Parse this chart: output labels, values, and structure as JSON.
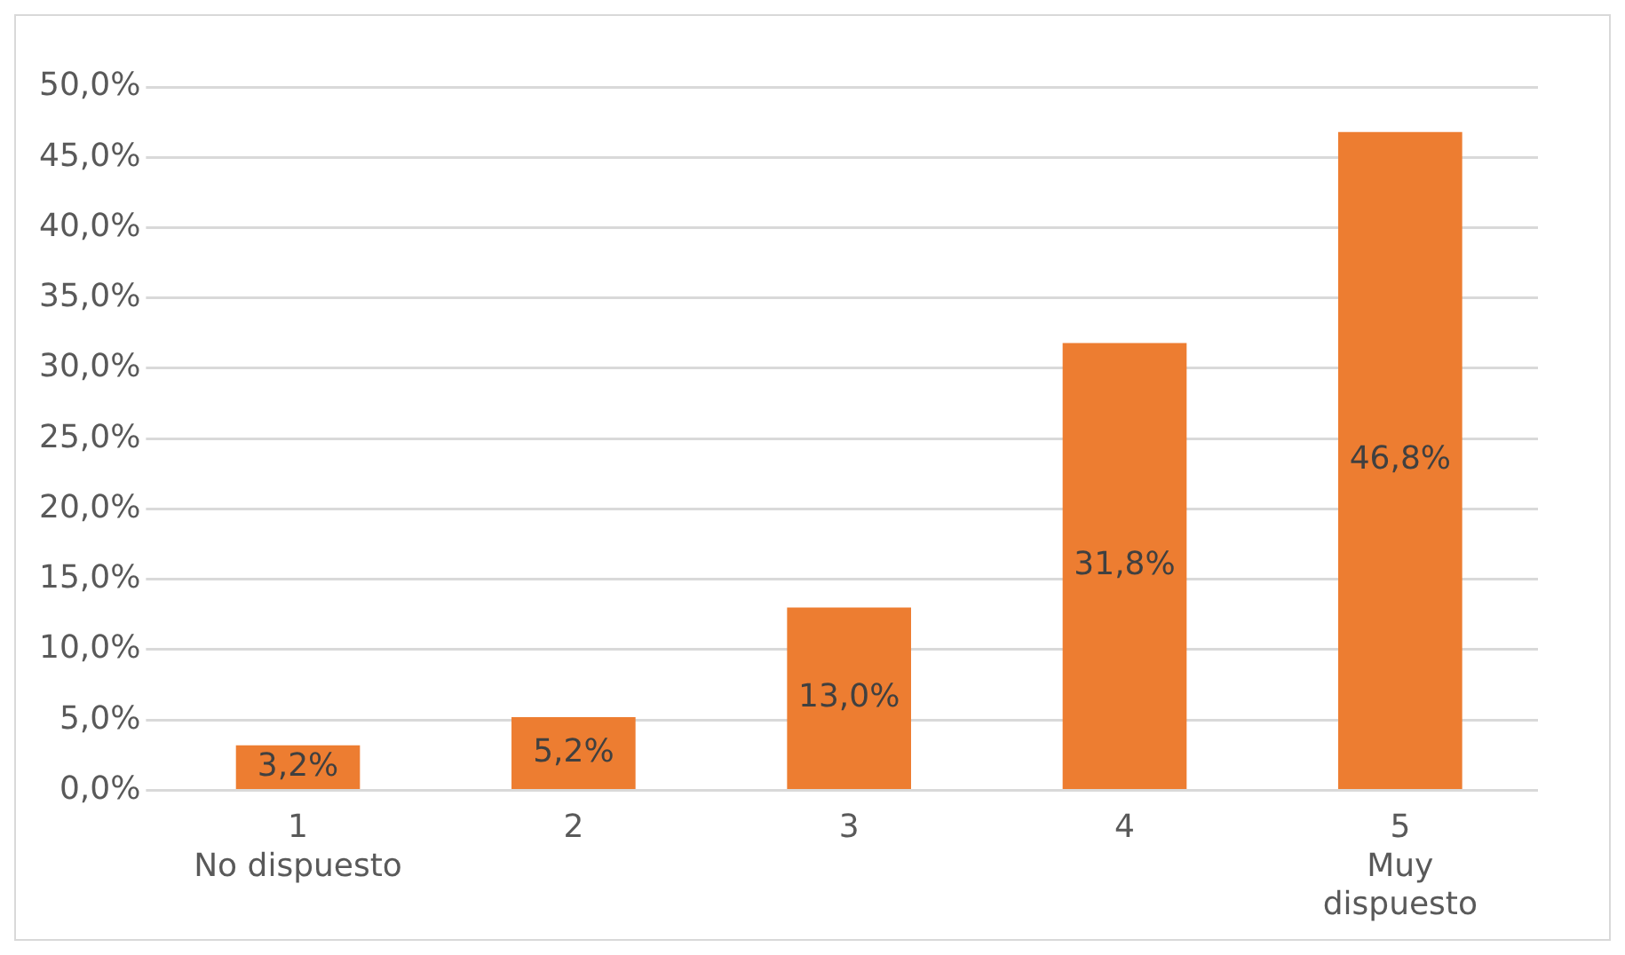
{
  "chart_data": {
    "type": "bar",
    "categories": [
      "1\nNo dispuesto",
      "2",
      "3",
      "4",
      "5\nMuy\ndispuesto"
    ],
    "values": [
      3.2,
      5.2,
      13.0,
      31.8,
      46.8
    ],
    "value_labels": [
      "3,2%",
      "5,2%",
      "13,0%",
      "31,8%",
      "46,8%"
    ],
    "color": "#ed7d31",
    "ylim": [
      0,
      50
    ],
    "yticks": [
      {
        "value": 0,
        "label": "0,0%"
      },
      {
        "value": 5,
        "label": "5,0%"
      },
      {
        "value": 10,
        "label": "10,0%"
      },
      {
        "value": 15,
        "label": "15,0%"
      },
      {
        "value": 20,
        "label": "20,0%"
      },
      {
        "value": 25,
        "label": "25,0%"
      },
      {
        "value": 30,
        "label": "30,0%"
      },
      {
        "value": 35,
        "label": "35,0%"
      },
      {
        "value": 40,
        "label": "40,0%"
      },
      {
        "value": 45,
        "label": "45,0%"
      },
      {
        "value": 50,
        "label": "50,0%"
      }
    ],
    "grid": "y",
    "legend": false
  }
}
